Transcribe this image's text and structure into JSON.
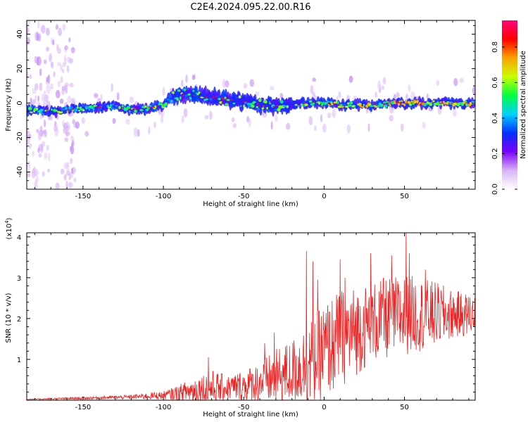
{
  "figure_title": "C2E4.2024.095.22.00.R16",
  "chart_data": [
    {
      "type": "heatmap",
      "title": "",
      "xlabel": "Height of straight line (km)",
      "ylabel": "Frequency (Hz)",
      "xlim": [
        -185,
        94
      ],
      "ylim": [
        -50,
        48
      ],
      "xticks": [
        -150,
        -100,
        -50,
        0,
        50
      ],
      "yticks": [
        -40,
        -20,
        0,
        20,
        40
      ],
      "colorbar": {
        "label": "Normalized spectral amplitude",
        "range": [
          0,
          0.95
        ],
        "ticks": [
          0.0,
          0.2,
          0.4,
          0.6,
          0.8
        ],
        "colors": [
          "#ffffff",
          "#d8b4f5",
          "#7a00ff",
          "#0030ff",
          "#00d0ff",
          "#00ff40",
          "#c8ff00",
          "#ffa000",
          "#ff0000",
          "#ff007a"
        ]
      },
      "ridge_center_hz": [
        [
          -185,
          -4
        ],
        [
          -170,
          -5
        ],
        [
          -150,
          -3
        ],
        [
          -130,
          -2
        ],
        [
          -120,
          -4
        ],
        [
          -110,
          -3
        ],
        [
          -100,
          -1
        ],
        [
          -95,
          4
        ],
        [
          -85,
          5
        ],
        [
          -75,
          4
        ],
        [
          -60,
          2
        ],
        [
          -45,
          0
        ],
        [
          -35,
          -2
        ],
        [
          -25,
          -1
        ],
        [
          -10,
          0
        ],
        [
          0,
          0
        ],
        [
          10,
          -1
        ],
        [
          30,
          -1
        ],
        [
          50,
          0
        ],
        [
          70,
          0
        ],
        [
          94,
          0
        ]
      ]
    },
    {
      "type": "line",
      "title": "",
      "xlabel": "Height of straight line (km)",
      "ylabel": "SNR (10 * v/v)",
      "yscale_label": "(x10^4)",
      "xlim": [
        -185,
        94
      ],
      "ylim": [
        0,
        4.1
      ],
      "xticks": [
        -150,
        -100,
        -50,
        0,
        50
      ],
      "yticks": [
        1,
        2,
        3,
        4
      ],
      "series_color": "#ee2222",
      "envelope": {
        "x": [
          -185,
          -160,
          -140,
          -120,
          -110,
          -100,
          -90,
          -80,
          -70,
          -60,
          -50,
          -40,
          -30,
          -20,
          -10,
          0,
          10,
          20,
          30,
          40,
          50,
          60,
          70,
          80,
          94
        ],
        "mean": [
          0.02,
          0.04,
          0.06,
          0.08,
          0.1,
          0.12,
          0.18,
          0.25,
          0.3,
          0.3,
          0.35,
          0.45,
          0.55,
          0.7,
          0.9,
          1.2,
          1.5,
          1.7,
          1.9,
          2.0,
          2.1,
          2.1,
          2.1,
          2.1,
          2.1
        ],
        "amp": [
          0.01,
          0.03,
          0.04,
          0.05,
          0.08,
          0.1,
          0.2,
          0.35,
          0.45,
          0.3,
          0.4,
          0.5,
          0.7,
          0.8,
          1.0,
          1.2,
          1.2,
          1.1,
          1.0,
          1.0,
          1.0,
          0.9,
          0.8,
          0.6,
          0.5
        ]
      },
      "peaks": [
        [
          -72,
          1.05
        ],
        [
          -37,
          1.4
        ],
        [
          -31,
          1.65
        ],
        [
          -11,
          3.65
        ],
        [
          -7,
          3.4
        ],
        [
          -4,
          2.95
        ],
        [
          10,
          3.45
        ],
        [
          13,
          3.0
        ],
        [
          29,
          3.6
        ],
        [
          37,
          3.0
        ],
        [
          42,
          3.55
        ],
        [
          51,
          4.1
        ],
        [
          53,
          3.6
        ],
        [
          63,
          3.2
        ]
      ]
    }
  ]
}
